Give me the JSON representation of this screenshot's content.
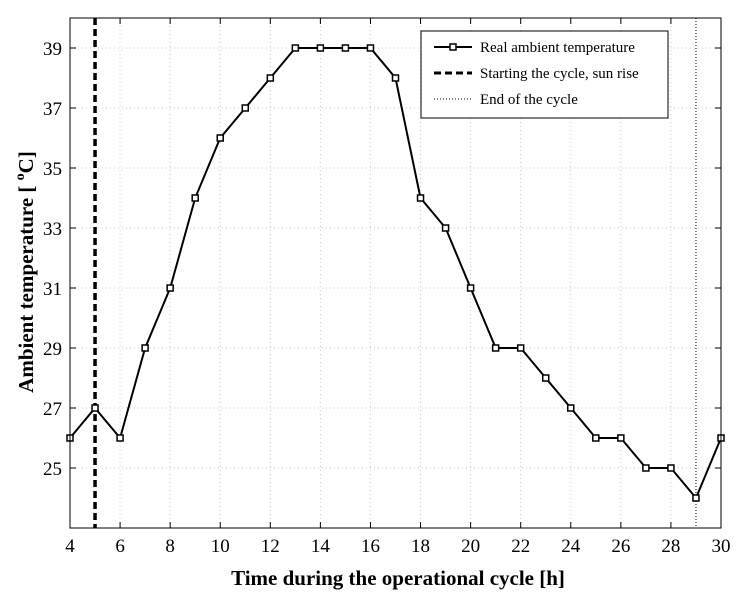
{
  "chart_data": {
    "type": "line",
    "xlabel": "Time during the operational cycle  [h]",
    "ylabel": "Ambient temperature  [ ",
    "ylabel_superscript": "o",
    "ylabel_unit_tail": "C]",
    "xlim": [
      4,
      30
    ],
    "ylim": [
      23,
      40
    ],
    "xticks": [
      4,
      6,
      8,
      10,
      12,
      14,
      16,
      18,
      20,
      22,
      24,
      26,
      28,
      30
    ],
    "yticks": [
      25,
      27,
      29,
      31,
      33,
      35,
      37,
      39
    ],
    "grid": true,
    "legend_position": "top-right",
    "series": [
      {
        "name": "Real ambient temperature",
        "style": "solid-square-markers",
        "color": "#000000",
        "x": [
          4,
          5,
          6,
          7,
          8,
          9,
          10,
          11,
          12,
          13,
          14,
          15,
          16,
          17,
          18,
          19,
          20,
          21,
          22,
          23,
          24,
          25,
          26,
          27,
          28,
          29,
          30
        ],
        "y": [
          26,
          27,
          26,
          29,
          31,
          34,
          36,
          37,
          38,
          39,
          39,
          39,
          39,
          38,
          34,
          33,
          31,
          29,
          29,
          28,
          27,
          26,
          26,
          25,
          25,
          24,
          26
        ]
      }
    ],
    "vertical_lines": [
      {
        "name": "Starting the cycle, sun rise",
        "x": 5,
        "style": "dashed",
        "color": "#000000"
      },
      {
        "name": "End of the cycle",
        "x": 29,
        "style": "dotted",
        "color": "#555555"
      }
    ]
  }
}
